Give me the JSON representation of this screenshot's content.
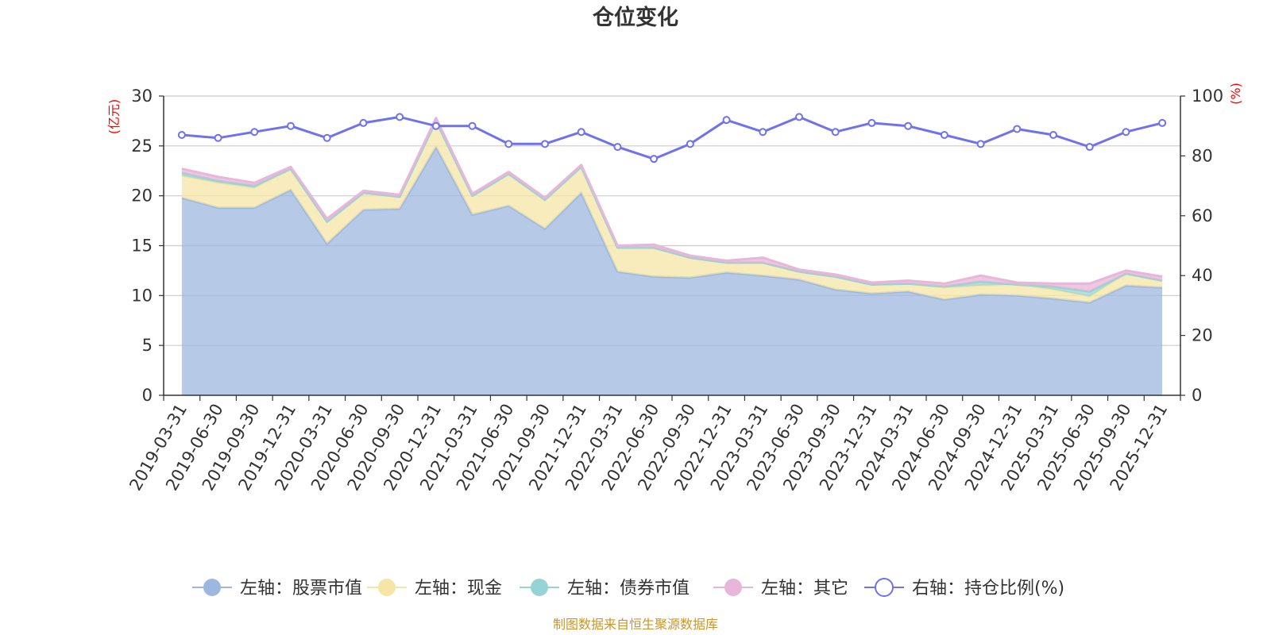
{
  "chart_data": {
    "type": "area",
    "title": "仓位变化",
    "source": "制图数据来自恒生聚源数据库",
    "left_axis": {
      "label": "(亿元)",
      "min": 0,
      "max": 30,
      "ticks": [
        0,
        5,
        10,
        15,
        20,
        25,
        30
      ]
    },
    "right_axis": {
      "label": "(%)",
      "min": 0,
      "max": 100,
      "ticks": [
        0,
        20,
        40,
        60,
        80,
        100
      ]
    },
    "categories": [
      "2019-03-31",
      "2019-06-30",
      "2019-09-30",
      "2019-12-31",
      "2020-03-31",
      "2020-06-30",
      "2020-09-30",
      "2020-12-31",
      "2021-03-31",
      "2021-06-30",
      "2021-09-30",
      "2021-12-31",
      "2022-03-31",
      "2022-06-30",
      "2022-09-30",
      "2022-12-31",
      "2023-03-31",
      "2023-06-30",
      "2023-09-30",
      "2023-12-31",
      "2024-03-31",
      "2024-06-30",
      "2024-09-30",
      "2024-12-31",
      "2025-03-31",
      "2025-06-30",
      "2025-09-30",
      "2025-12-31"
    ],
    "series": [
      {
        "name": "左轴：股票市值",
        "axis": "left",
        "stack": true,
        "color": "#9db8e0",
        "values": [
          19.8,
          18.8,
          18.8,
          20.6,
          15.2,
          18.6,
          18.7,
          24.9,
          18.1,
          19.0,
          16.7,
          20.3,
          12.4,
          11.9,
          11.8,
          12.3,
          12.0,
          11.6,
          10.6,
          10.2,
          10.4,
          9.6,
          10.1,
          10.0,
          9.7,
          9.3,
          11.0,
          10.8
        ]
      },
      {
        "name": "左轴：现金",
        "axis": "left",
        "stack": true,
        "color": "#f5e6a6",
        "values": [
          2.2,
          2.5,
          2.0,
          2.1,
          2.2,
          1.7,
          1.2,
          2.6,
          1.9,
          3.2,
          2.9,
          2.6,
          2.4,
          2.9,
          2.0,
          1.0,
          1.3,
          0.8,
          1.3,
          0.9,
          0.8,
          1.2,
          0.9,
          1.1,
          0.9,
          0.6,
          1.2,
          0.7
        ]
      },
      {
        "name": "左轴：债券市值",
        "axis": "left",
        "stack": true,
        "color": "#95d4d4",
        "values": [
          0.3,
          0.2,
          0.2,
          0.0,
          0.0,
          0.0,
          0.0,
          0.0,
          0.0,
          0.0,
          0.0,
          0.0,
          0.0,
          0.0,
          0.0,
          0.0,
          0.0,
          0.0,
          0.0,
          0.0,
          0.0,
          0.1,
          0.4,
          0.0,
          0.3,
          0.5,
          0.0,
          0.0
        ]
      },
      {
        "name": "左轴：其它",
        "axis": "left",
        "stack": true,
        "color": "#e8b6d8",
        "values": [
          0.4,
          0.4,
          0.3,
          0.2,
          0.3,
          0.2,
          0.2,
          0.3,
          0.2,
          0.2,
          0.2,
          0.2,
          0.2,
          0.3,
          0.2,
          0.2,
          0.5,
          0.2,
          0.2,
          0.2,
          0.3,
          0.3,
          0.6,
          0.2,
          0.3,
          0.8,
          0.3,
          0.4
        ]
      },
      {
        "name": "右轴：持仓比例(%)",
        "axis": "right",
        "type": "line",
        "color": "#6f72ee",
        "values": [
          87,
          86,
          88,
          90,
          86,
          91,
          93,
          90,
          90,
          84,
          84,
          88,
          83,
          79,
          84,
          92,
          88,
          93,
          88,
          91,
          90,
          87,
          84,
          89,
          87,
          83,
          88,
          91
        ]
      }
    ]
  },
  "colors": {
    "axis_line": "#333333",
    "grid": "#cccccc",
    "axis_label": "#ff0000",
    "title": "#333333",
    "source": "#c8962a"
  }
}
